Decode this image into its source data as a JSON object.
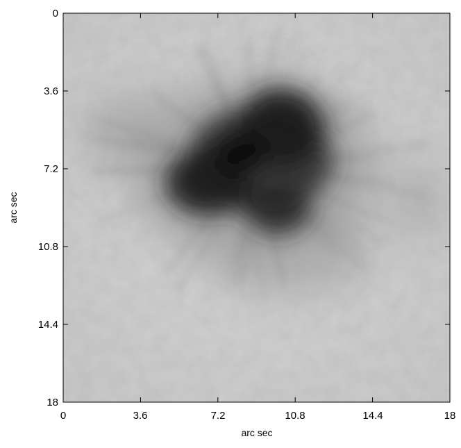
{
  "figure": {
    "xlabel": "arc sec",
    "ylabel": "arc sec",
    "x_ticks": [
      "0",
      "3.6",
      "7.2",
      "10.8",
      "14.4",
      "18"
    ],
    "y_ticks": [
      "0",
      "3.6",
      "7.2",
      "10.8",
      "14.4",
      "18"
    ],
    "x_range": [
      0,
      18
    ],
    "y_range": [
      0,
      18
    ],
    "y_axis_direction": "increasing-downward",
    "image_content": "grayscale solar image: dark sunspot umbra near center with radial penumbral filaments and light granulation background"
  },
  "colors": {
    "background": "#ffffff",
    "axes": "#000000",
    "quiet_sun": "#c9c9c9",
    "umbra": "#111111",
    "penumbra": "#707070"
  }
}
